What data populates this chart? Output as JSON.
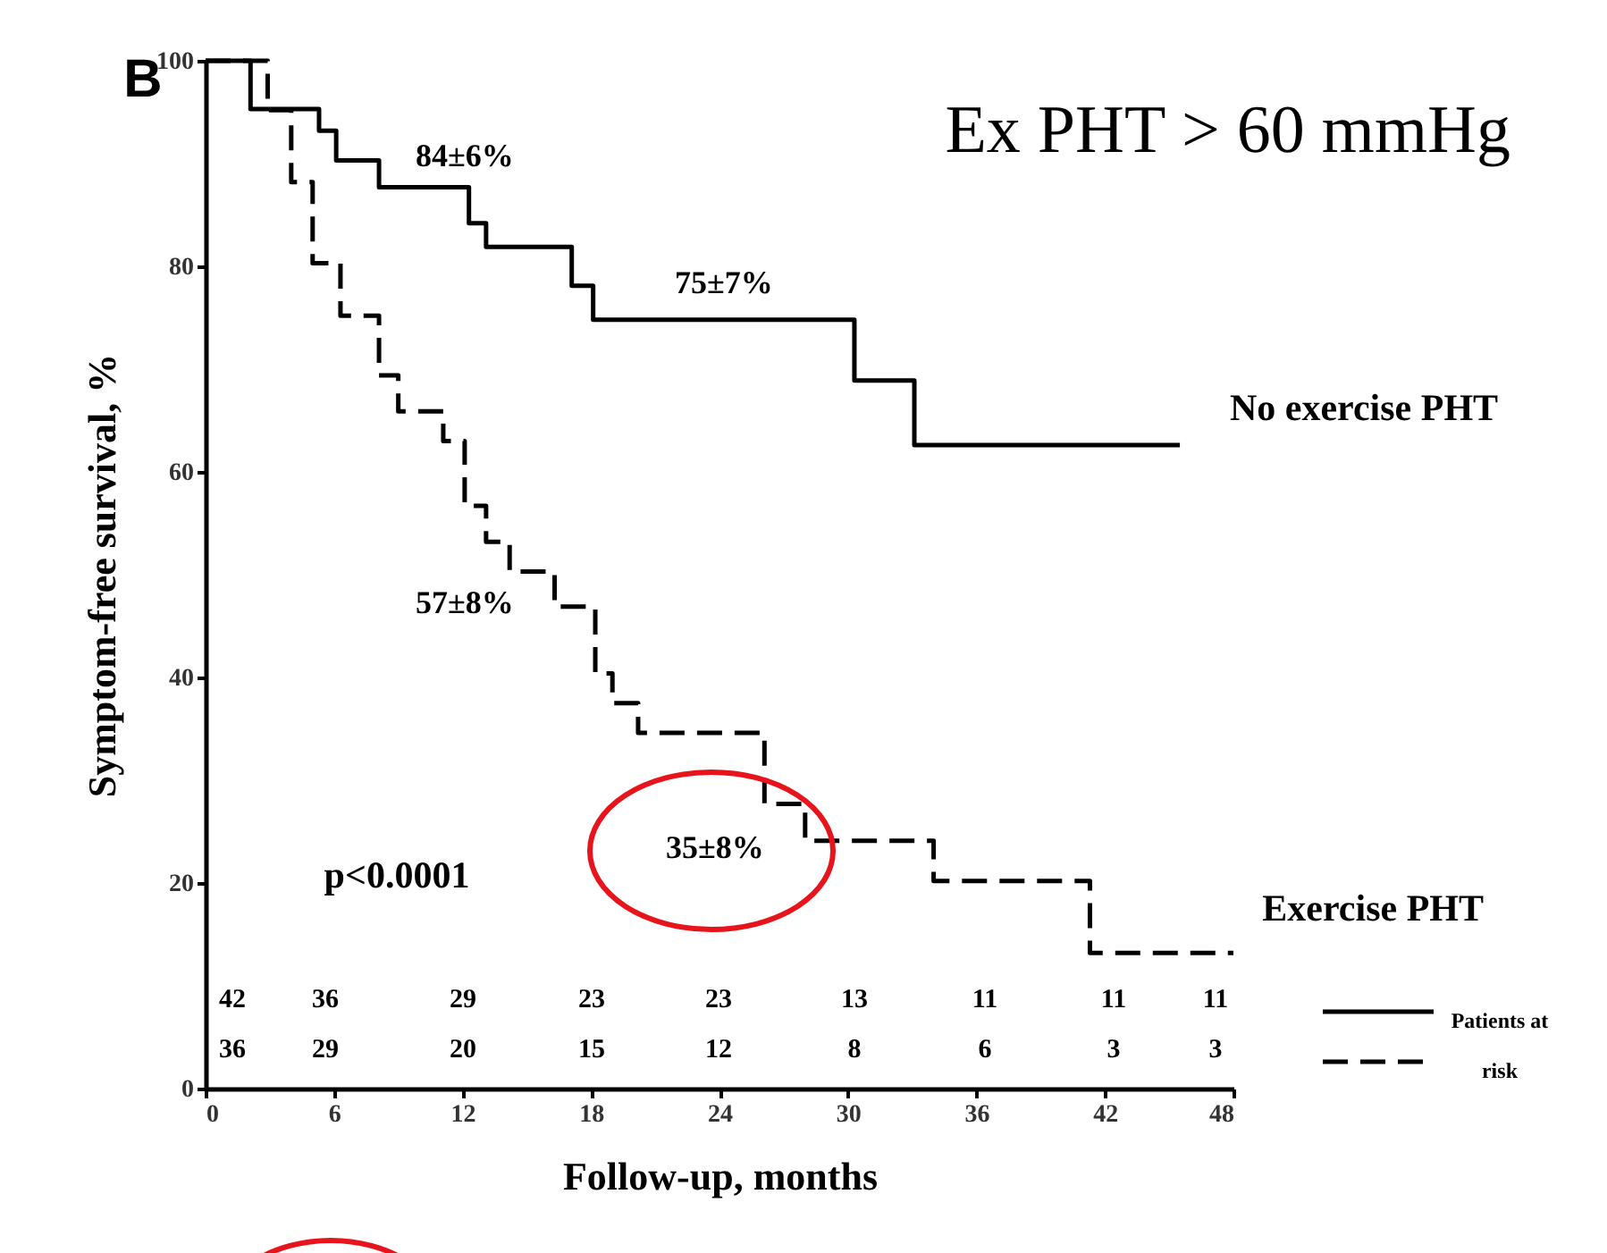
{
  "chart_data": {
    "type": "step",
    "title": "Ex PHT > 60 mmHg",
    "xlabel": "Follow-up, months",
    "ylabel": "Symptom-free survival, %",
    "legend_title": "Patients at risk",
    "legend": "bottom right",
    "grid": false,
    "marker": "none",
    "xlim": [
      0,
      48
    ],
    "xticks": [
      0,
      6,
      12,
      18,
      24,
      30,
      36,
      42,
      48
    ],
    "ylim": [
      0,
      100
    ],
    "yticks": [
      0,
      20,
      40,
      60,
      80,
      100
    ],
    "series": [
      {
        "name": "No exercise PHT",
        "color": "#000000",
        "line_style": "solid",
        "x": [
          0,
          2.1,
          5.3,
          6.1,
          8.1,
          12.3,
          13.1,
          17.1,
          18.1,
          30.3,
          33.1,
          45.5
        ],
        "values": [
          100,
          95.3,
          93.2,
          90.3,
          87.7,
          84.2,
          81.9,
          78.1,
          74.8,
          68.9,
          62.6,
          62.6
        ]
      },
      {
        "name": "Exercise PHT",
        "color": "#000000",
        "line_style": "dashed",
        "x": [
          0,
          2.9,
          4.0,
          5.0,
          6.3,
          8.1,
          9.0,
          11.1,
          12.1,
          13.1,
          14.2,
          16.3,
          18.2,
          19.0,
          20.2,
          26.1,
          28.0,
          34.0,
          41.3,
          48
        ],
        "values": [
          100,
          95.2,
          88.2,
          80.3,
          75.2,
          69.4,
          65.9,
          63.0,
          56.7,
          53.2,
          50.3,
          46.9,
          40.4,
          37.5,
          34.6,
          27.7,
          24.1,
          20.2,
          13.2,
          13.2
        ]
      }
    ],
    "annotations": [
      "B",
      "84±6%",
      "75±7%",
      "57±8%",
      "35±8%",
      "p<0.0001",
      "42",
      "36",
      "29",
      "23",
      "23",
      "13",
      "11",
      "11",
      "11",
      "36",
      "29",
      "20",
      "15",
      "12",
      "8",
      "6",
      "3",
      "3"
    ]
  }
}
